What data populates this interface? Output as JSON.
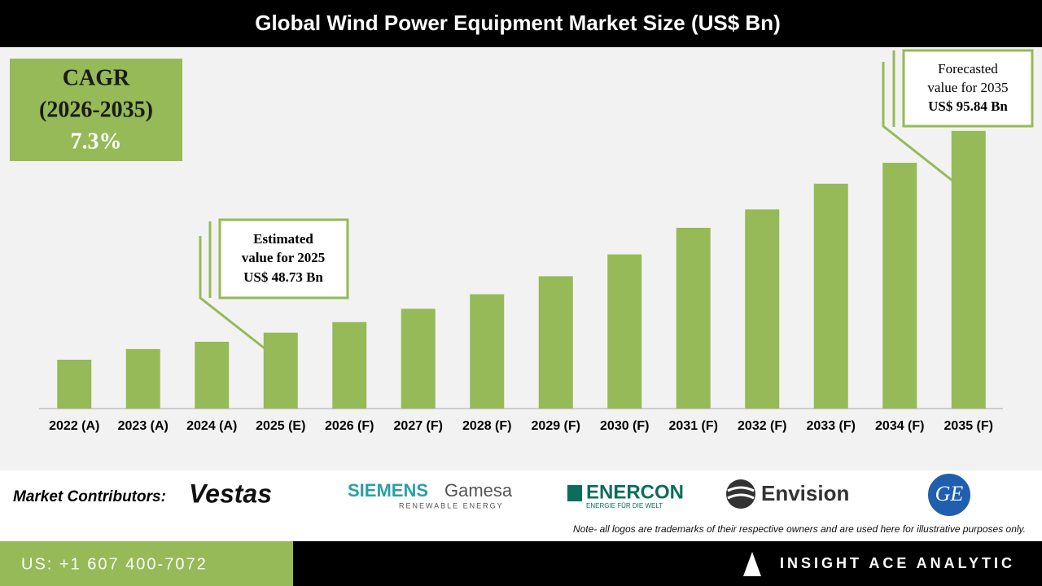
{
  "chart_data": {
    "type": "bar",
    "title": "Global Wind Power Equipment Market Size (US$ Bn)",
    "categories": [
      "2022 (A)",
      "2023 (A)",
      "2024 (A)",
      "2025 (E)",
      "2026 (F)",
      "2027 (F)",
      "2028 (F)",
      "2029 (F)",
      "2030 (F)",
      "2031 (F)",
      "2032 (F)",
      "2033 (F)",
      "2034 (F)",
      "2035 (F)"
    ],
    "values": [
      42.4,
      44.9,
      46.6,
      48.73,
      51.2,
      54.3,
      57.7,
      61.9,
      67.0,
      73.2,
      77.5,
      83.5,
      88.4,
      95.84
    ],
    "color": "#95ba57",
    "ylim": [
      31,
      115
    ],
    "cagr": [
      "CAGR",
      "(2026-2035)",
      "7.3%"
    ],
    "annotations": [
      {
        "lines": [
          "Estimated",
          "value for 2025",
          "US$ 48.73 Bn"
        ]
      },
      {
        "lines": [
          "Forecasted",
          "value for 2035",
          "US$ 95.84 Bn"
        ]
      }
    ]
  },
  "footer": {
    "contributors_label": "Market Contributors:",
    "logos": [
      "Vestas",
      "SIEMENS",
      "Gamesa",
      "RENEWABLE ENERGY",
      "ENERCON",
      "ENERGIE FÜR DIE WELT",
      "Envision",
      "GE"
    ],
    "note": "Note- all logos are trademarks of their respective owners and are used here for illustrative purposes only.",
    "phone": "US: +1 607 400-7072",
    "brand": "INSIGHT ACE ANALYTIC"
  }
}
